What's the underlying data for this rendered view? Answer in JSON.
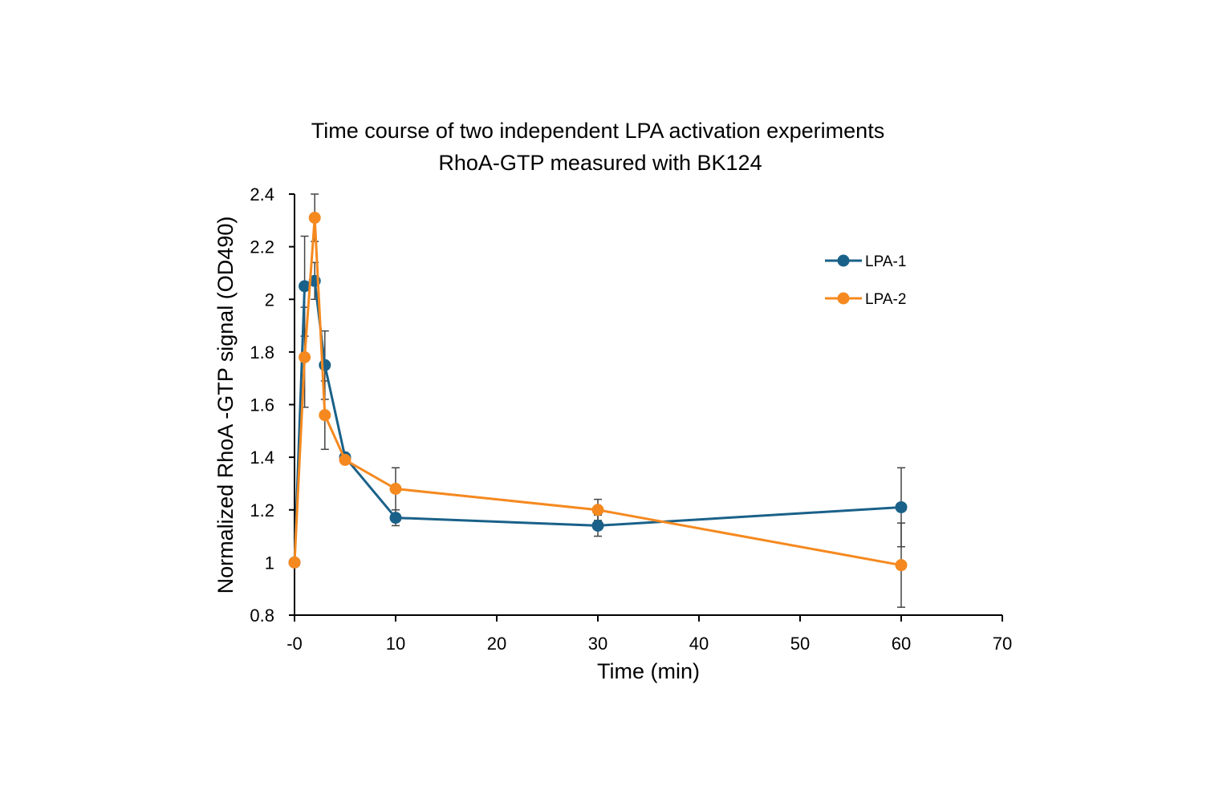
{
  "chart_data": {
    "type": "line",
    "title": "Time course of two independent LPA activation experiments",
    "subtitle": "RhoA-GTP measured with BK124",
    "xlabel": "Time (min)",
    "ylabel": "Normalized RhoA -GTP signal (OD490)",
    "xlim": [
      0,
      70
    ],
    "ylim": [
      0.8,
      2.4
    ],
    "x_ticks": [
      0,
      10,
      20,
      30,
      40,
      50,
      60,
      70
    ],
    "x_tick_labels": [
      "-0",
      "10",
      "20",
      "30",
      "40",
      "50",
      "60",
      "70"
    ],
    "y_ticks": [
      0.8,
      1,
      1.2,
      1.4,
      1.6,
      1.8,
      2,
      2.2,
      2.4
    ],
    "y_tick_labels": [
      "0.8",
      "1",
      "1.2",
      "1.4",
      "1.6",
      "1.8",
      "2",
      "2.2",
      "2.4"
    ],
    "grid": false,
    "legend_position": "right",
    "series": [
      {
        "name": "LPA-1",
        "color": "#1a6189",
        "x": [
          0,
          1,
          2,
          3,
          5,
          10,
          30,
          60
        ],
        "y": [
          1.0,
          2.05,
          2.07,
          1.75,
          1.4,
          1.17,
          1.14,
          1.21
        ],
        "err": [
          0,
          0.19,
          0.07,
          0.13,
          0,
          0.03,
          0.04,
          0.15
        ]
      },
      {
        "name": "LPA-2",
        "color": "#f5891f",
        "x": [
          0,
          1,
          2,
          3,
          5,
          10,
          30,
          60
        ],
        "y": [
          1.0,
          1.78,
          2.31,
          1.56,
          1.39,
          1.28,
          1.2,
          0.99
        ],
        "err": [
          0,
          0.19,
          0.09,
          0.13,
          0,
          0.08,
          0.04,
          0.16
        ]
      }
    ]
  }
}
